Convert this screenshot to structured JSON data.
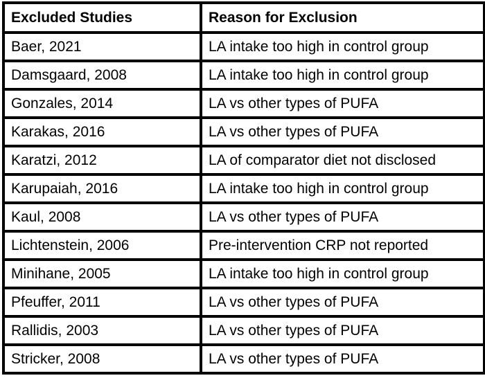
{
  "colors": {
    "border": "#000000",
    "background": "#ffffff",
    "text": "#000000"
  },
  "table": {
    "columns": [
      {
        "label": "Excluded Studies"
      },
      {
        "label": "Reason for Exclusion"
      }
    ],
    "rows": [
      {
        "study": "Baer, 2021",
        "reason": "LA intake too high in control group"
      },
      {
        "study": "Damsgaard, 2008",
        "reason": "LA intake too high in control group"
      },
      {
        "study": "Gonzales, 2014",
        "reason": "LA vs other types of PUFA"
      },
      {
        "study": "Karakas, 2016",
        "reason": "LA vs other types of PUFA"
      },
      {
        "study": "Karatzi, 2012",
        "reason": "LA of comparator diet not disclosed"
      },
      {
        "study": "Karupaiah, 2016",
        "reason": "LA intake too high in control group"
      },
      {
        "study": "Kaul, 2008",
        "reason": "LA vs other types of PUFA"
      },
      {
        "study": "Lichtenstein, 2006",
        "reason": "Pre-intervention CRP not reported"
      },
      {
        "study": "Minihane, 2005",
        "reason": "LA intake too high in control group"
      },
      {
        "study": "Pfeuffer, 2011",
        "reason": "LA vs other types of PUFA"
      },
      {
        "study": "Rallidis, 2003",
        "reason": "LA vs other types of PUFA"
      },
      {
        "study": "Stricker, 2008",
        "reason": "LA vs other types of PUFA"
      }
    ]
  }
}
